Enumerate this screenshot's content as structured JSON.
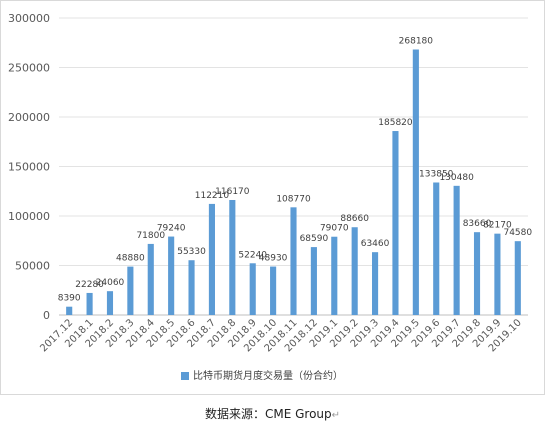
{
  "chart_data": {
    "type": "bar",
    "title": "",
    "xlabel": "",
    "ylabel": "",
    "categories": [
      "2017.12",
      "2018.1",
      "2018.2",
      "2018.3",
      "2018.4",
      "2018.5",
      "2018.6",
      "2018.7",
      "2018.8",
      "2018.9",
      "2018.10",
      "2018.11",
      "2018.12",
      "2019.1",
      "2019.2",
      "2019.3",
      "2019.4",
      "2019.5",
      "2019.6",
      "2019.7",
      "2019.8",
      "2019.9",
      "2019.10"
    ],
    "series": [
      {
        "name": "比特币期货月度交易量（份合约）",
        "color": "#5b9bd5",
        "values": [
          8390,
          22280,
          24060,
          48880,
          71800,
          79240,
          55330,
          112210,
          116170,
          52240,
          48930,
          108770,
          68590,
          79070,
          88660,
          63460,
          185820,
          268180,
          133850,
          130480,
          83660,
          82170,
          74580
        ],
        "labels": [
          "8390",
          "22280",
          "24060",
          "48880",
          "71800",
          "79240",
          "55330",
          "112210",
          "116170",
          "52240",
          "48930",
          "108770",
          "68590",
          "79070",
          "88660",
          "63460",
          "185820",
          "268180",
          "133850",
          "130480",
          "83660",
          "82170",
          "74580"
        ]
      }
    ],
    "ylim": [
      0,
      300000
    ],
    "yticks": [
      "0",
      "50000",
      "100000",
      "150000",
      "200000",
      "250000",
      "300000"
    ],
    "grid": true,
    "legend_position": "bottom"
  },
  "source": "数据来源：CME Group"
}
